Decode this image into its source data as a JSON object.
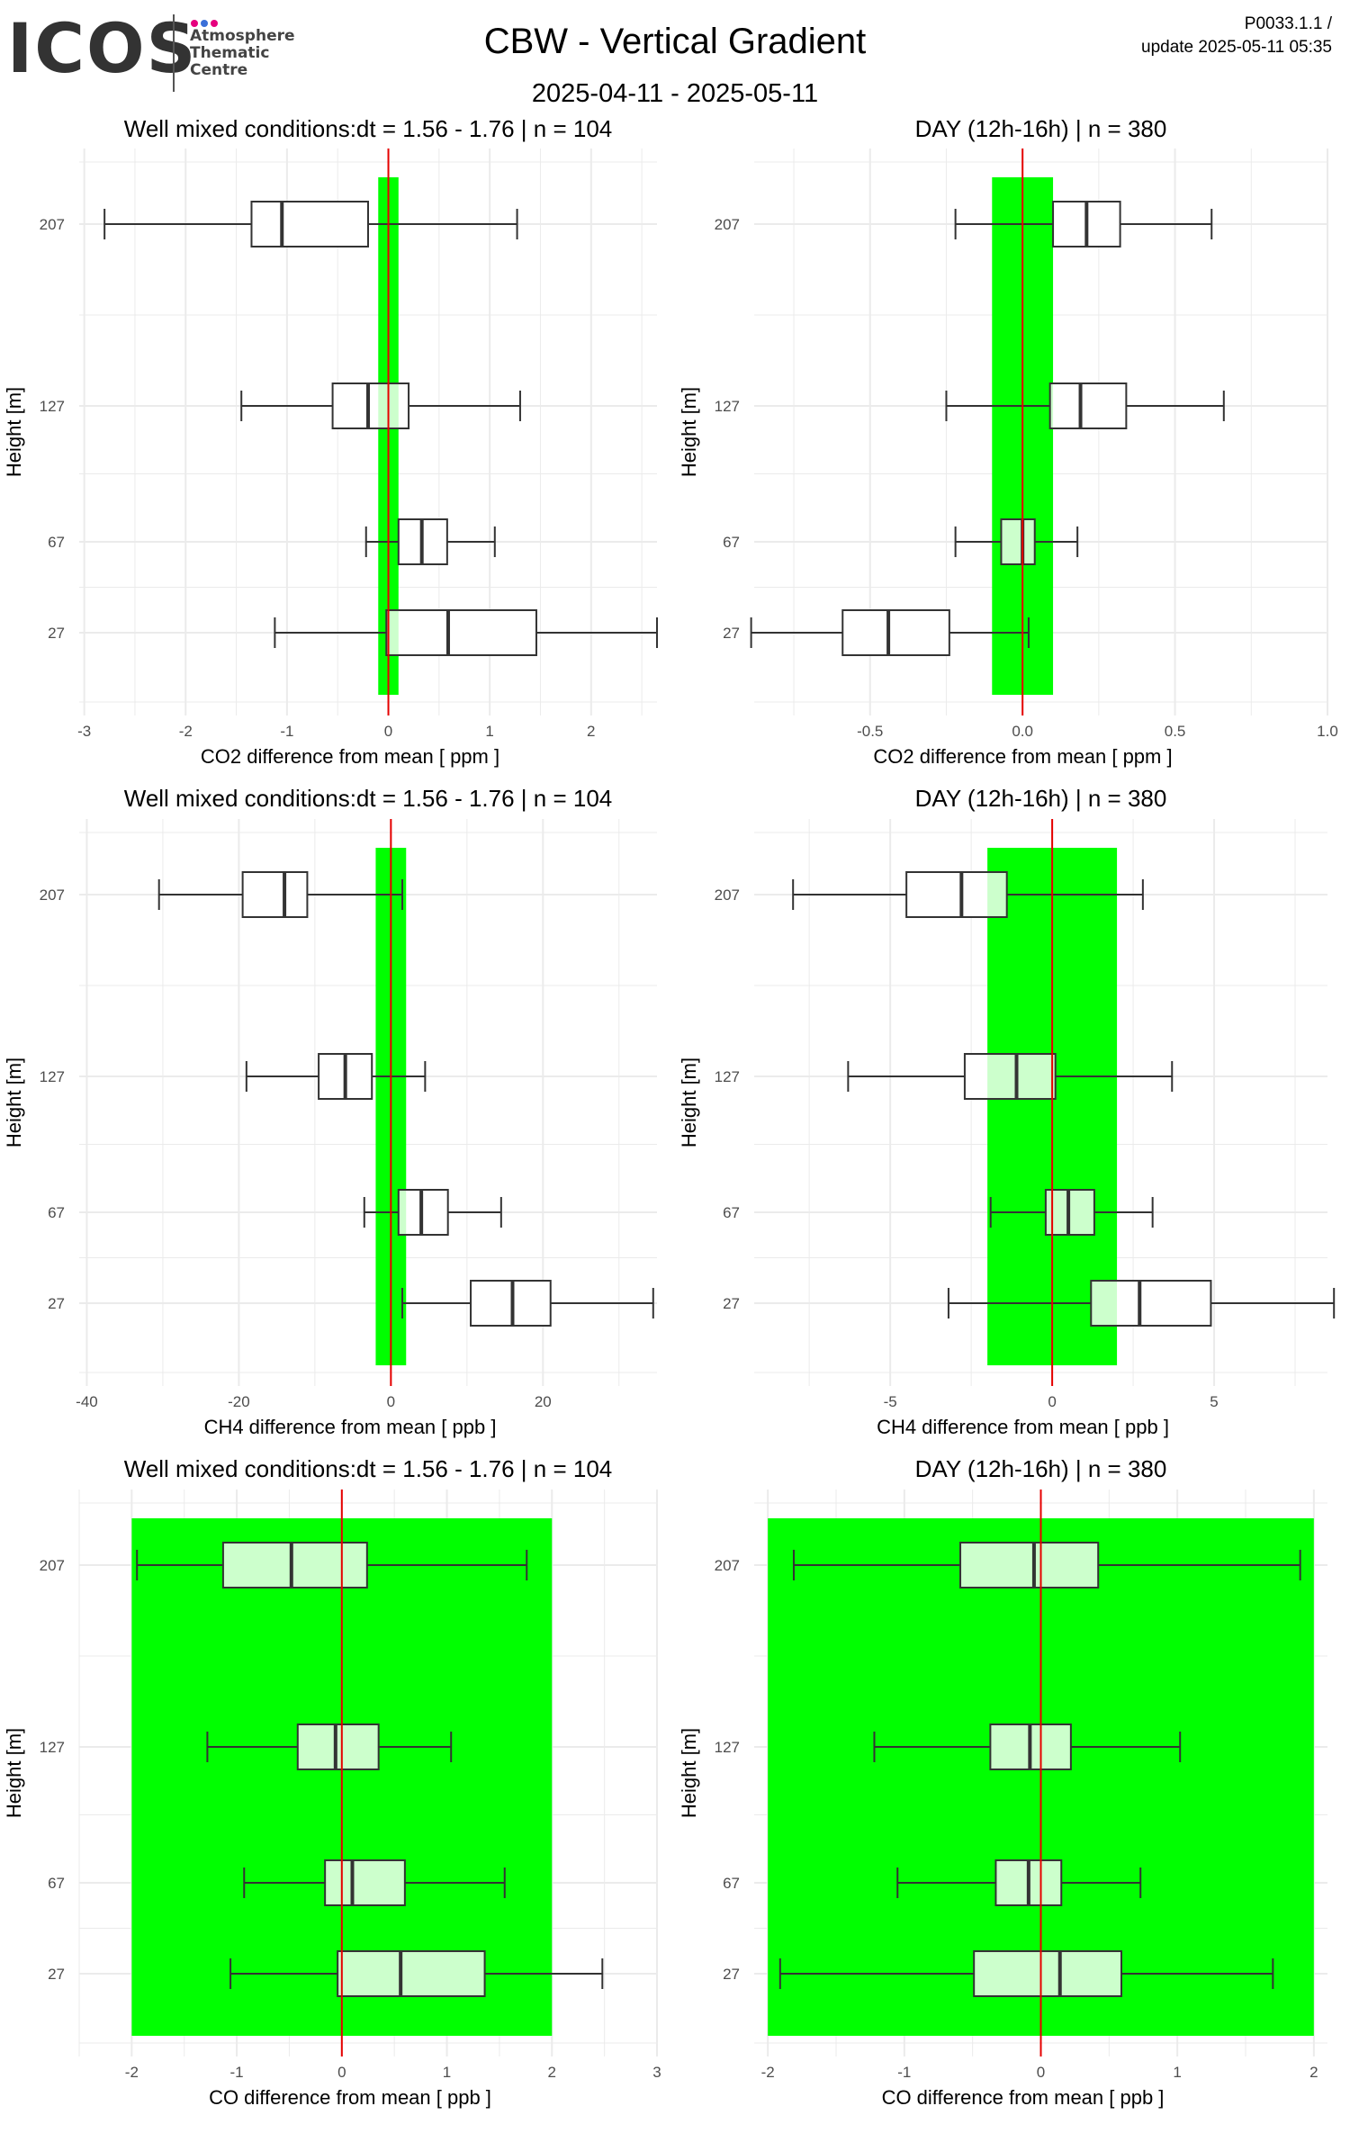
{
  "header": {
    "logo_text": "ICOS",
    "logo_lines": [
      "Atmosphere",
      "Thematic",
      "Centre"
    ],
    "title": "CBW - Vertical Gradient",
    "date_range": "2025-04-11 - 2025-05-11",
    "code": "P0033.1.1 /",
    "update": "update  2025-05-11 05:35"
  },
  "colors": {
    "band": "#00ff00",
    "zero_line": "#e60000",
    "box_fill_inside_band": "#ccffcc",
    "box_fill": "#ffffff",
    "grid": "#ebebeb",
    "logo_dots": [
      "#e6007e",
      "#3a6fd8",
      "#e6007e"
    ]
  },
  "chart_data": [
    {
      "type": "boxplot",
      "title": "Well mixed conditions:dt = 1.56 - 1.76 | n = 104",
      "xlabel": "CO2  difference from mean [ ppm ]",
      "ylabel": "Height [m]",
      "xlim": [
        -3.05,
        2.65
      ],
      "xticks": [
        -3,
        -2,
        -1,
        0,
        1,
        2
      ],
      "heights": [
        207,
        127,
        67,
        27
      ],
      "band": [
        -0.1,
        0.1
      ],
      "boxes": [
        {
          "height": 207,
          "min": -2.8,
          "q1": -1.35,
          "median": -1.05,
          "q3": -0.2,
          "max": 1.27
        },
        {
          "height": 127,
          "min": -1.45,
          "q1": -0.55,
          "median": -0.2,
          "q3": 0.2,
          "max": 1.3
        },
        {
          "height": 67,
          "min": -0.22,
          "q1": 0.1,
          "median": 0.33,
          "q3": 0.58,
          "max": 1.05
        },
        {
          "height": 27,
          "min": -1.12,
          "q1": -0.02,
          "median": 0.59,
          "q3": 1.46,
          "max": 2.65
        }
      ]
    },
    {
      "type": "boxplot",
      "title": "DAY (12h-16h) | n = 380",
      "xlabel": "CO2  difference from mean [ ppm ]",
      "ylabel": "Height [m]",
      "xlim": [
        -0.88,
        1.0
      ],
      "xticks": [
        -0.5,
        0.0,
        0.5,
        1.0
      ],
      "xtick_labels": [
        "-0.5",
        "0.0",
        "0.5",
        "1.0"
      ],
      "heights": [
        207,
        127,
        67,
        27
      ],
      "band": [
        -0.1,
        0.1
      ],
      "boxes": [
        {
          "height": 207,
          "min": -0.22,
          "q1": 0.1,
          "median": 0.21,
          "q3": 0.32,
          "max": 0.62
        },
        {
          "height": 127,
          "min": -0.25,
          "q1": 0.09,
          "median": 0.19,
          "q3": 0.34,
          "max": 0.66
        },
        {
          "height": 67,
          "min": -0.22,
          "q1": -0.07,
          "median": 0.0,
          "q3": 0.04,
          "max": 0.18
        },
        {
          "height": 27,
          "min": -0.89,
          "q1": -0.59,
          "median": -0.44,
          "q3": -0.24,
          "max": 0.02
        }
      ]
    },
    {
      "type": "boxplot",
      "title": "Well mixed conditions:dt = 1.56 - 1.76 | n = 104",
      "xlabel": "CH4  difference from mean [ ppb ]",
      "ylabel": "Height [m]",
      "xlim": [
        -41,
        35
      ],
      "xticks": [
        -40,
        -20,
        0,
        20
      ],
      "heights": [
        207,
        127,
        67,
        27
      ],
      "band": [
        -2,
        2
      ],
      "boxes": [
        {
          "height": 207,
          "min": -30.5,
          "q1": -19.5,
          "median": -14,
          "q3": -11,
          "max": 1.5
        },
        {
          "height": 127,
          "min": -19,
          "q1": -9.5,
          "median": -6,
          "q3": -2.5,
          "max": 4.5
        },
        {
          "height": 67,
          "min": -3.5,
          "q1": 1,
          "median": 4,
          "q3": 7.5,
          "max": 14.5
        },
        {
          "height": 27,
          "min": 1.5,
          "q1": 10.5,
          "median": 16,
          "q3": 21,
          "max": 34.5
        }
      ]
    },
    {
      "type": "boxplot",
      "title": "DAY (12h-16h) | n = 380",
      "xlabel": "CH4  difference from mean [ ppb ]",
      "ylabel": "Height [m]",
      "xlim": [
        -9.2,
        8.5
      ],
      "xticks": [
        -5,
        0,
        5
      ],
      "heights": [
        207,
        127,
        67,
        27
      ],
      "band": [
        -2,
        2
      ],
      "boxes": [
        {
          "height": 207,
          "min": -8,
          "q1": -4.5,
          "median": -2.8,
          "q3": -1.4,
          "max": 2.8
        },
        {
          "height": 127,
          "min": -6.3,
          "q1": -2.7,
          "median": -1.1,
          "q3": 0.1,
          "max": 3.7
        },
        {
          "height": 67,
          "min": -1.9,
          "q1": -0.2,
          "median": 0.5,
          "q3": 1.3,
          "max": 3.1
        },
        {
          "height": 27,
          "min": -3.2,
          "q1": 1.2,
          "median": 2.7,
          "q3": 4.9,
          "max": 8.7
        }
      ]
    },
    {
      "type": "boxplot",
      "title": "Well mixed conditions:dt = 1.56 - 1.76 | n = 104",
      "xlabel": "CO  difference from mean [ ppb ]",
      "ylabel": "Height [m]",
      "xlim": [
        -2.5,
        3.0
      ],
      "xticks": [
        -2,
        -1,
        0,
        1,
        2,
        3
      ],
      "heights": [
        207,
        127,
        67,
        27
      ],
      "band": [
        -2,
        2
      ],
      "boxes": [
        {
          "height": 207,
          "min": -1.95,
          "q1": -1.13,
          "median": -0.48,
          "q3": 0.24,
          "max": 1.76
        },
        {
          "height": 127,
          "min": -1.28,
          "q1": -0.42,
          "median": -0.06,
          "q3": 0.35,
          "max": 1.04
        },
        {
          "height": 67,
          "min": -0.93,
          "q1": -0.16,
          "median": 0.1,
          "q3": 0.6,
          "max": 1.55
        },
        {
          "height": 27,
          "min": -1.06,
          "q1": -0.04,
          "median": 0.56,
          "q3": 1.36,
          "max": 2.48
        }
      ]
    },
    {
      "type": "boxplot",
      "title": "DAY (12h-16h) | n = 380",
      "xlabel": "CO  difference from mean [ ppb ]",
      "ylabel": "Height [m]",
      "xlim": [
        -2.1,
        2.1
      ],
      "xticks": [
        -2,
        -1,
        0,
        1,
        2
      ],
      "heights": [
        207,
        127,
        67,
        27
      ],
      "band": [
        -2,
        2
      ],
      "boxes": [
        {
          "height": 207,
          "min": -1.81,
          "q1": -0.59,
          "median": -0.05,
          "q3": 0.42,
          "max": 1.9
        },
        {
          "height": 127,
          "min": -1.22,
          "q1": -0.37,
          "median": -0.08,
          "q3": 0.22,
          "max": 1.02
        },
        {
          "height": 67,
          "min": -1.05,
          "q1": -0.33,
          "median": -0.09,
          "q3": 0.15,
          "max": 0.73
        },
        {
          "height": 27,
          "min": -1.91,
          "q1": -0.49,
          "median": 0.14,
          "q3": 0.59,
          "max": 1.7
        }
      ]
    }
  ]
}
